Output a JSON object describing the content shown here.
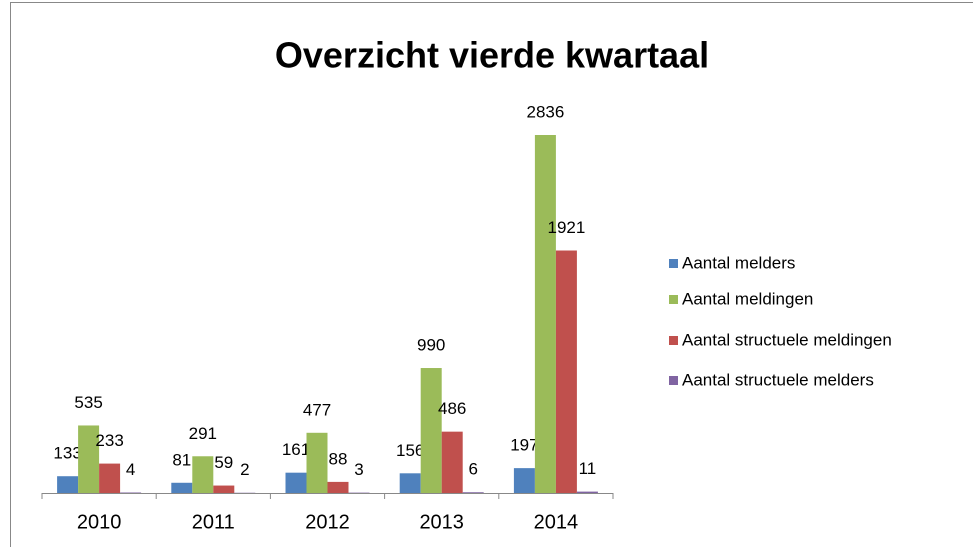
{
  "chart_data": {
    "type": "bar",
    "title": "Overzicht vierde kwartaal",
    "categories": [
      "2010",
      "2011",
      "2012",
      "2013",
      "2014"
    ],
    "series": [
      {
        "name": "Aantal melders",
        "color": "#4f81bd",
        "values": [
          133,
          81,
          161,
          156,
          197
        ]
      },
      {
        "name": "Aantal meldingen",
        "color": "#9bbb59",
        "values": [
          535,
          291,
          477,
          990,
          2836
        ]
      },
      {
        "name": "Aantal structuele meldingen",
        "color": "#c0504d",
        "values": [
          233,
          59,
          88,
          486,
          1921
        ]
      },
      {
        "name": "Aantal structuele melders",
        "color": "#8064a2",
        "values": [
          4,
          2,
          3,
          6,
          11
        ]
      }
    ],
    "legend": "right"
  }
}
